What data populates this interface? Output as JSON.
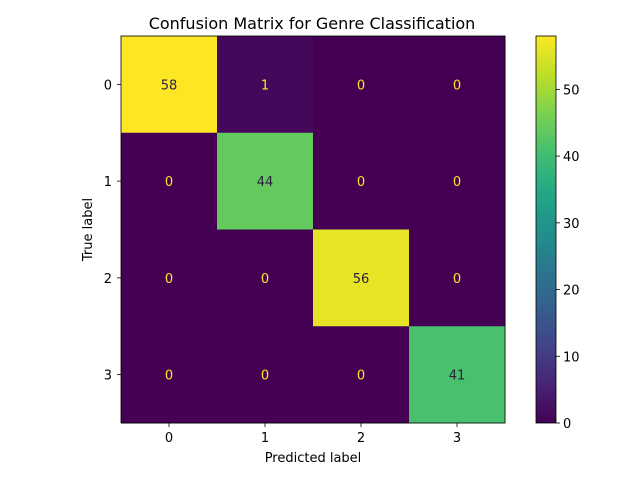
{
  "chart_data": {
    "type": "heatmap",
    "title": "Confusion Matrix for Genre Classification",
    "xlabel": "Predicted label",
    "ylabel": "True label",
    "x_categories": [
      "0",
      "1",
      "2",
      "3"
    ],
    "y_categories": [
      "0",
      "1",
      "2",
      "3"
    ],
    "values": [
      [
        58,
        1,
        0,
        0
      ],
      [
        0,
        44,
        0,
        0
      ],
      [
        0,
        0,
        56,
        0
      ],
      [
        0,
        0,
        0,
        41
      ]
    ],
    "colormap": "viridis",
    "color_range": [
      0,
      58
    ],
    "colorbar_ticks": [
      "0",
      "10",
      "20",
      "30",
      "40",
      "50"
    ],
    "grid": false,
    "legend": "colorbar-right"
  }
}
